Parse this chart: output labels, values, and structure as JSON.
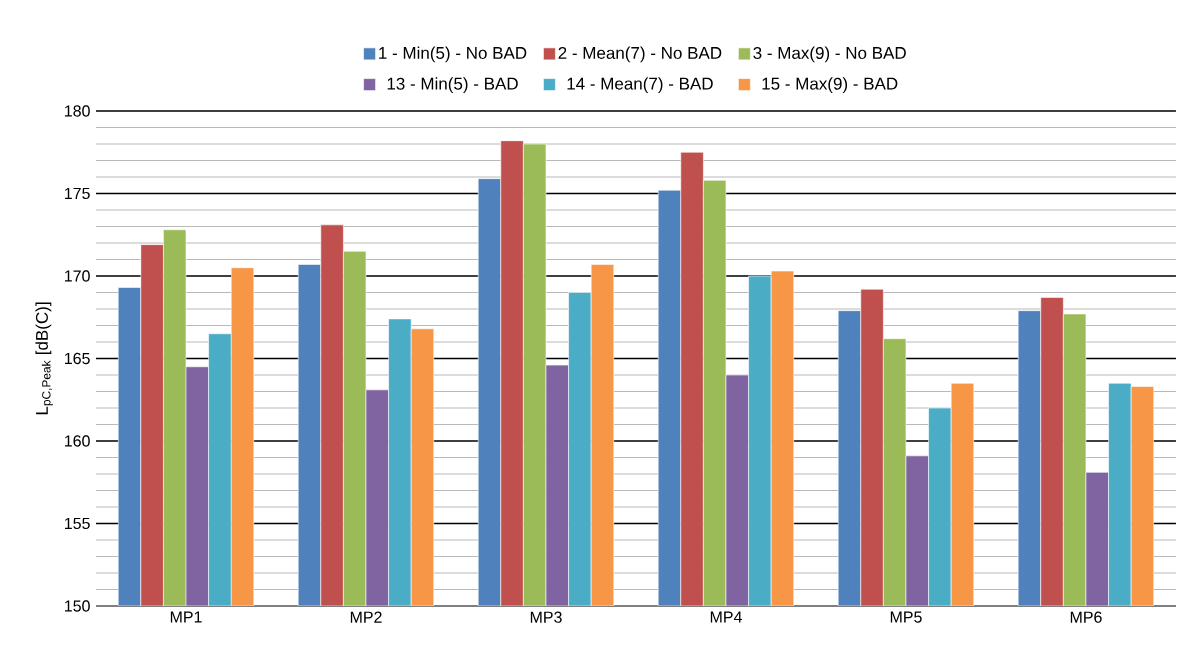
{
  "chart_data": {
    "type": "bar",
    "ylabel": "L$_{pC,Peak}$ [dB(C)]",
    "categories": [
      "MP1",
      "MP2",
      "MP3",
      "MP4",
      "MP5",
      "MP6"
    ],
    "series": [
      {
        "name": "1 - Min(5) - No BAD",
        "color": "#4f81bd",
        "values": [
          169.3,
          170.7,
          175.9,
          175.2,
          167.9,
          167.9
        ]
      },
      {
        "name": "2 - Mean(7) - No BAD",
        "color": "#c0504d",
        "values": [
          171.9,
          173.1,
          178.2,
          177.5,
          169.2,
          168.7
        ]
      },
      {
        "name": "3 - Max(9) - No BAD",
        "color": "#9bbb59",
        "values": [
          172.8,
          171.5,
          178.0,
          175.8,
          166.2,
          167.7
        ]
      },
      {
        "name": "13 - Min(5) - BAD",
        "color": "#8064a2",
        "values": [
          164.5,
          163.1,
          164.6,
          164.0,
          159.1,
          158.1
        ]
      },
      {
        "name": "14 - Mean(7) - BAD",
        "color": "#4bacc6",
        "values": [
          166.5,
          167.4,
          169.0,
          170.0,
          162.0,
          163.5
        ]
      },
      {
        "name": "15 - Max(9) - BAD",
        "color": "#f79646",
        "values": [
          170.5,
          166.8,
          170.7,
          170.3,
          163.5,
          163.3
        ]
      }
    ],
    "ylim": [
      150,
      180
    ],
    "yticks": [
      150,
      155,
      160,
      165,
      170,
      175,
      180
    ],
    "grid": "y",
    "legend": "top"
  }
}
